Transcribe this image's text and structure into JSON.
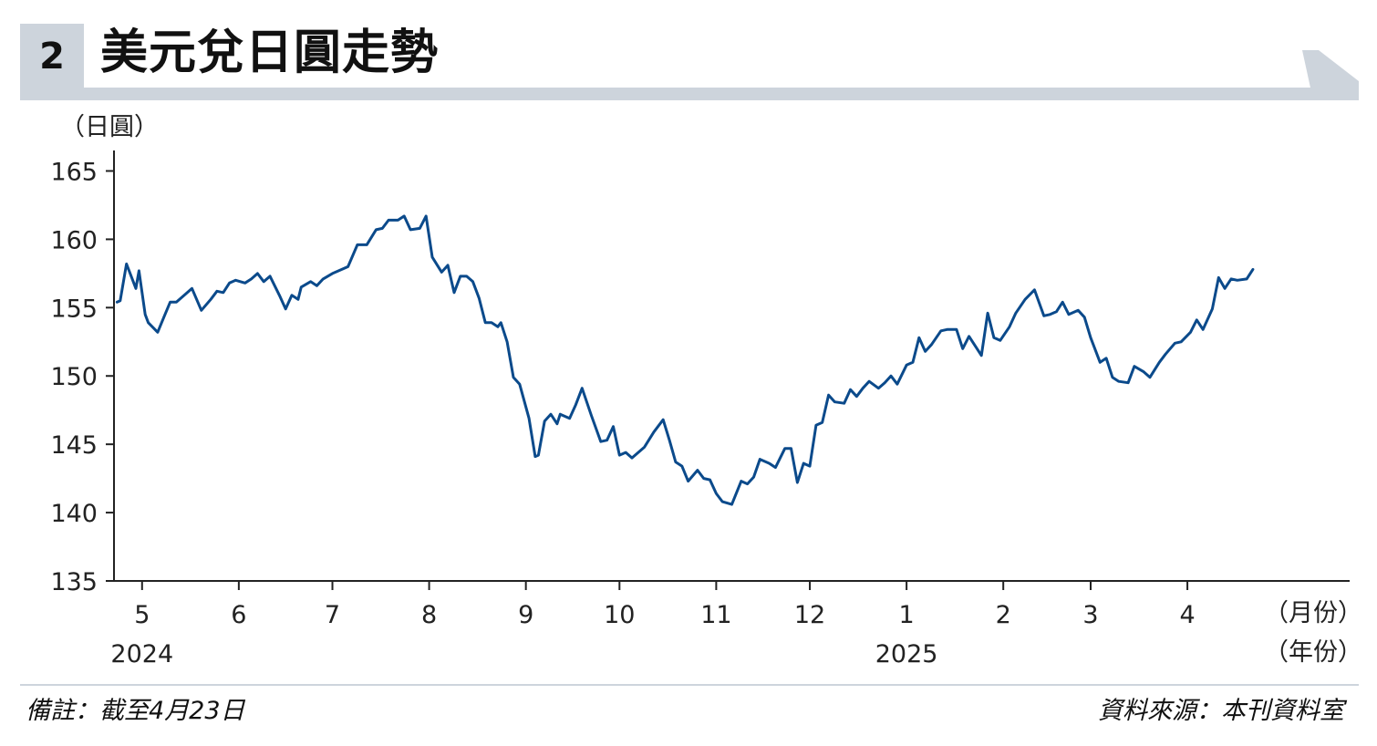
{
  "header": {
    "number": "2",
    "title": "美元兌日圓走勢"
  },
  "footer": {
    "note": "備註：截至4月23日",
    "source": "資料來源：本刊資料室"
  },
  "colors": {
    "line": "#0b4a8b",
    "band": "#cdd4dc",
    "axis": "#222222"
  },
  "chart_data": {
    "type": "line",
    "title": "美元兌日圓走勢",
    "ylabel": "（日圓）",
    "xlabel_month": "（月份）",
    "xlabel_year": "（年份）",
    "ylim": [
      135,
      166.5
    ],
    "yticks": [
      135,
      140,
      145,
      150,
      155,
      160,
      165
    ],
    "xticks": [
      {
        "label": "5",
        "date": "2024-05-01"
      },
      {
        "label": "6",
        "date": "2024-06-01"
      },
      {
        "label": "7",
        "date": "2024-07-01"
      },
      {
        "label": "8",
        "date": "2024-08-01"
      },
      {
        "label": "9",
        "date": "2024-09-01"
      },
      {
        "label": "10",
        "date": "2024-10-01"
      },
      {
        "label": "11",
        "date": "2024-11-01"
      },
      {
        "label": "12",
        "date": "2024-12-01"
      },
      {
        "label": "1",
        "date": "2025-01-01"
      },
      {
        "label": "2",
        "date": "2025-02-01"
      },
      {
        "label": "3",
        "date": "2025-03-01"
      },
      {
        "label": "4",
        "date": "2025-04-01"
      }
    ],
    "years": [
      {
        "label": "2024",
        "date": "2024-05-01"
      },
      {
        "label": "2025",
        "date": "2025-01-01"
      }
    ],
    "xlim": [
      "2024-04-22",
      "2025-05-23"
    ],
    "grid": false,
    "series": [
      {
        "values": [
          [
            "2024-04-23",
            155.4
          ],
          [
            "2024-04-24",
            155.5
          ],
          [
            "2024-04-26",
            158.2
          ],
          [
            "2024-04-29",
            156.4
          ],
          [
            "2024-04-30",
            157.7
          ],
          [
            "2024-05-02",
            154.5
          ],
          [
            "2024-05-03",
            153.9
          ],
          [
            "2024-05-06",
            153.2
          ],
          [
            "2024-05-08",
            154.3
          ],
          [
            "2024-05-10",
            155.4
          ],
          [
            "2024-05-12",
            155.4
          ],
          [
            "2024-05-15",
            156.0
          ],
          [
            "2024-05-17",
            156.4
          ],
          [
            "2024-05-20",
            154.8
          ],
          [
            "2024-05-23",
            155.6
          ],
          [
            "2024-05-25",
            156.2
          ],
          [
            "2024-05-27",
            156.1
          ],
          [
            "2024-05-29",
            156.8
          ],
          [
            "2024-05-31",
            157.0
          ],
          [
            "2024-06-03",
            156.8
          ],
          [
            "2024-06-05",
            157.1
          ],
          [
            "2024-06-07",
            157.5
          ],
          [
            "2024-06-09",
            156.9
          ],
          [
            "2024-06-11",
            157.3
          ],
          [
            "2024-06-14",
            155.9
          ],
          [
            "2024-06-16",
            154.9
          ],
          [
            "2024-06-18",
            155.9
          ],
          [
            "2024-06-20",
            155.6
          ],
          [
            "2024-06-21",
            156.5
          ],
          [
            "2024-06-24",
            156.9
          ],
          [
            "2024-06-26",
            156.6
          ],
          [
            "2024-06-28",
            157.1
          ],
          [
            "2024-07-01",
            157.5
          ],
          [
            "2024-07-03",
            157.7
          ],
          [
            "2024-07-06",
            158.0
          ],
          [
            "2024-07-09",
            159.6
          ],
          [
            "2024-07-12",
            159.6
          ],
          [
            "2024-07-15",
            160.7
          ],
          [
            "2024-07-17",
            160.8
          ],
          [
            "2024-07-19",
            161.4
          ],
          [
            "2024-07-22",
            161.4
          ],
          [
            "2024-07-24",
            161.7
          ],
          [
            "2024-07-26",
            160.7
          ],
          [
            "2024-07-29",
            160.8
          ],
          [
            "2024-07-31",
            161.7
          ],
          [
            "2024-08-02",
            158.7
          ],
          [
            "2024-08-05",
            157.6
          ],
          [
            "2024-08-07",
            158.1
          ],
          [
            "2024-08-09",
            156.1
          ],
          [
            "2024-08-11",
            157.3
          ],
          [
            "2024-08-13",
            157.3
          ],
          [
            "2024-08-15",
            156.9
          ],
          [
            "2024-08-17",
            155.7
          ],
          [
            "2024-08-19",
            153.9
          ],
          [
            "2024-08-21",
            153.9
          ],
          [
            "2024-08-23",
            153.6
          ],
          [
            "2024-08-24",
            153.9
          ],
          [
            "2024-08-26",
            152.5
          ],
          [
            "2024-08-28",
            149.9
          ],
          [
            "2024-08-30",
            149.4
          ],
          [
            "2024-09-02",
            146.9
          ],
          [
            "2024-09-04",
            144.1
          ],
          [
            "2024-09-05",
            144.2
          ],
          [
            "2024-09-07",
            146.7
          ],
          [
            "2024-09-09",
            147.2
          ],
          [
            "2024-09-11",
            146.5
          ],
          [
            "2024-09-12",
            147.2
          ],
          [
            "2024-09-15",
            146.9
          ],
          [
            "2024-09-17",
            147.9
          ],
          [
            "2024-09-19",
            149.1
          ],
          [
            "2024-09-22",
            147.1
          ],
          [
            "2024-09-25",
            145.2
          ],
          [
            "2024-09-27",
            145.3
          ],
          [
            "2024-09-29",
            146.3
          ],
          [
            "2024-10-01",
            144.2
          ],
          [
            "2024-10-03",
            144.4
          ],
          [
            "2024-10-05",
            144.0
          ],
          [
            "2024-10-09",
            144.8
          ],
          [
            "2024-10-12",
            145.9
          ],
          [
            "2024-10-15",
            146.8
          ],
          [
            "2024-10-17",
            145.3
          ],
          [
            "2024-10-19",
            143.7
          ],
          [
            "2024-10-21",
            143.4
          ],
          [
            "2024-10-23",
            142.3
          ],
          [
            "2024-10-26",
            143.1
          ],
          [
            "2024-10-28",
            142.5
          ],
          [
            "2024-10-30",
            142.4
          ],
          [
            "2024-11-01",
            141.4
          ],
          [
            "2024-11-03",
            140.8
          ],
          [
            "2024-11-06",
            140.6
          ],
          [
            "2024-11-09",
            142.3
          ],
          [
            "2024-11-11",
            142.1
          ],
          [
            "2024-11-13",
            142.6
          ],
          [
            "2024-11-15",
            143.9
          ],
          [
            "2024-11-18",
            143.6
          ],
          [
            "2024-11-20",
            143.3
          ],
          [
            "2024-11-23",
            144.7
          ],
          [
            "2024-11-25",
            144.7
          ],
          [
            "2024-11-27",
            142.2
          ],
          [
            "2024-11-29",
            143.6
          ],
          [
            "2024-12-01",
            143.4
          ],
          [
            "2024-12-03",
            146.4
          ],
          [
            "2024-12-05",
            146.6
          ],
          [
            "2024-12-07",
            148.6
          ],
          [
            "2024-12-09",
            148.1
          ],
          [
            "2024-12-12",
            148.0
          ],
          [
            "2024-12-14",
            149.0
          ],
          [
            "2024-12-16",
            148.5
          ],
          [
            "2024-12-18",
            149.1
          ],
          [
            "2024-12-20",
            149.6
          ],
          [
            "2024-12-23",
            149.1
          ],
          [
            "2024-12-25",
            149.5
          ],
          [
            "2024-12-27",
            150.0
          ],
          [
            "2024-12-29",
            149.4
          ],
          [
            "2025-01-01",
            150.8
          ],
          [
            "2025-01-03",
            151.0
          ],
          [
            "2025-01-05",
            152.8
          ],
          [
            "2025-01-07",
            151.8
          ],
          [
            "2025-01-09",
            152.3
          ],
          [
            "2025-01-12",
            153.3
          ],
          [
            "2025-01-14",
            153.4
          ],
          [
            "2025-01-17",
            153.4
          ],
          [
            "2025-01-19",
            152.0
          ],
          [
            "2025-01-21",
            152.9
          ],
          [
            "2025-01-25",
            151.5
          ],
          [
            "2025-01-27",
            154.6
          ],
          [
            "2025-01-29",
            152.8
          ],
          [
            "2025-01-31",
            152.6
          ],
          [
            "2025-02-03",
            153.6
          ],
          [
            "2025-02-05",
            154.6
          ],
          [
            "2025-02-08",
            155.6
          ],
          [
            "2025-02-11",
            156.3
          ],
          [
            "2025-02-14",
            154.4
          ],
          [
            "2025-02-16",
            154.5
          ],
          [
            "2025-02-18",
            154.7
          ],
          [
            "2025-02-20",
            155.4
          ],
          [
            "2025-02-22",
            154.5
          ],
          [
            "2025-02-25",
            154.8
          ],
          [
            "2025-02-27",
            154.3
          ],
          [
            "2025-03-01",
            152.8
          ],
          [
            "2025-03-04",
            151.0
          ],
          [
            "2025-03-06",
            151.3
          ],
          [
            "2025-03-08",
            149.9
          ],
          [
            "2025-03-10",
            149.6
          ],
          [
            "2025-03-13",
            149.5
          ],
          [
            "2025-03-15",
            150.7
          ],
          [
            "2025-03-18",
            150.3
          ],
          [
            "2025-03-20",
            149.9
          ],
          [
            "2025-03-23",
            151.0
          ],
          [
            "2025-03-25",
            151.6
          ],
          [
            "2025-03-28",
            152.4
          ],
          [
            "2025-03-30",
            152.5
          ],
          [
            "2025-04-02",
            153.2
          ],
          [
            "2025-04-04",
            154.1
          ],
          [
            "2025-04-06",
            153.4
          ],
          [
            "2025-04-09",
            154.9
          ],
          [
            "2025-04-11",
            157.2
          ],
          [
            "2025-04-13",
            156.4
          ],
          [
            "2025-04-15",
            157.1
          ],
          [
            "2025-04-17",
            157.0
          ],
          [
            "2025-04-20",
            157.1
          ],
          [
            "2025-04-22",
            157.8
          ]
        ],
        "note": "values over approx. one year"
      }
    ]
  }
}
